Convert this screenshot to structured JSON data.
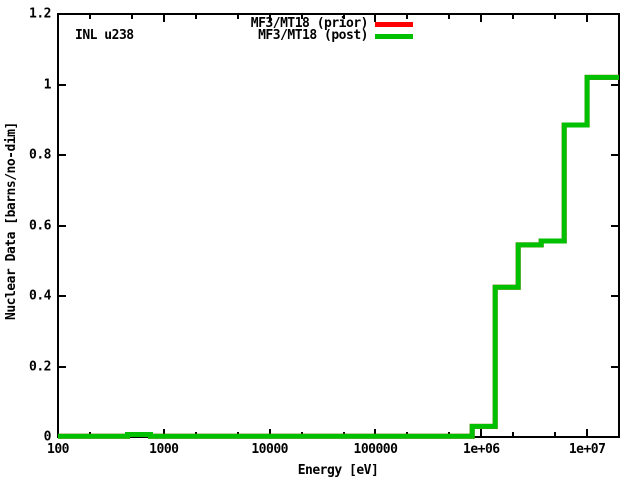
{
  "annotation": "INL u238",
  "legend": [
    {
      "label": "MF3/MT18 (prior)",
      "color": "#ff0000"
    },
    {
      "label": "MF3/MT18 (post)",
      "color": "#00c000"
    }
  ],
  "chart_data": {
    "type": "line",
    "line_style": "steps",
    "title": "",
    "xlabel": "Energy [eV]",
    "ylabel": "Nuclear Data [barns/no-dim]",
    "x_scale": "log",
    "xlim": [
      100,
      20000000
    ],
    "ylim": [
      0,
      1.2
    ],
    "grid": false,
    "legend_position": "top-right-inside",
    "x_ticks": [
      {
        "value": 100,
        "label": "100"
      },
      {
        "value": 1000,
        "label": "1000"
      },
      {
        "value": 10000,
        "label": "10000"
      },
      {
        "value": 100000,
        "label": "100000"
      },
      {
        "value": 1000000,
        "label": "1e+06"
      },
      {
        "value": 10000000,
        "label": "1e+07"
      }
    ],
    "x_minor_ticks": [
      200,
      500,
      2000,
      5000,
      20000,
      50000,
      200000,
      500000,
      2000000,
      5000000,
      20000000
    ],
    "y_ticks": [
      {
        "value": 0,
        "label": "0"
      },
      {
        "value": 0.2,
        "label": "0.2"
      },
      {
        "value": 0.4,
        "label": "0.4"
      },
      {
        "value": 0.6,
        "label": "0.6"
      },
      {
        "value": 0.8,
        "label": "0.8"
      },
      {
        "value": 1,
        "label": "1"
      },
      {
        "value": 1.2,
        "label": "1.2"
      }
    ],
    "series": [
      {
        "name": "MF3/MT18 (prior)",
        "color": "#ff0000",
        "note": "completely covered by the post curve in the plot",
        "steps": [
          [
            100,
            0.002
          ],
          [
            454,
            0.007
          ],
          [
            749,
            0.002
          ],
          [
            821000,
            0.03
          ],
          [
            1353000,
            0.425
          ],
          [
            2231000,
            0.545
          ],
          [
            3679000,
            0.556
          ],
          [
            6065000,
            0.885
          ],
          [
            10000000,
            1.02
          ]
        ],
        "x_end": 20000000
      },
      {
        "name": "MF3/MT18 (post)",
        "color": "#00c000",
        "steps": [
          [
            100,
            0.002
          ],
          [
            454,
            0.007
          ],
          [
            749,
            0.002
          ],
          [
            821000,
            0.03
          ],
          [
            1353000,
            0.425
          ],
          [
            2231000,
            0.545
          ],
          [
            3679000,
            0.556
          ],
          [
            6065000,
            0.885
          ],
          [
            10000000,
            1.02
          ]
        ],
        "x_end": 20000000
      }
    ]
  }
}
